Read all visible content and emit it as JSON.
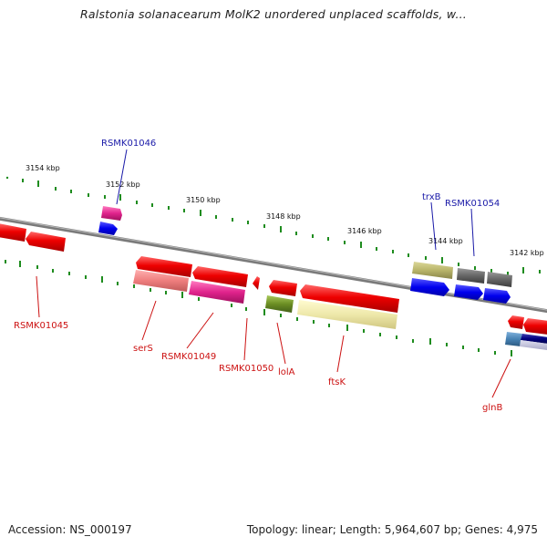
{
  "title": "Ralstonia solanacearum MolK2 unordered unplaced scaffolds, w...",
  "footer": {
    "accession": "Accession: NS_000197",
    "summary": "Topology: linear; Length: 5,964,607 bp; Genes: 4,975"
  },
  "ticks": [
    "3154 kbp",
    "3152 kbp",
    "3150 kbp",
    "3148 kbp",
    "3146 kbp",
    "3144 kbp",
    "3142 kbp"
  ],
  "gene_labels": {
    "rsmk01046": "RSMK01046",
    "trxb": "trxB",
    "rsmk01054": "RSMK01054",
    "rsmk01045": "RSMK01045",
    "sers": "serS",
    "rsmk01049": "RSMK01049",
    "rsmk01050": "RSMK01050",
    "lola": "lolA",
    "ftsk": "ftsK",
    "glnb": "glnB"
  },
  "colors": {
    "strand": "#7d7d7d",
    "tick": "#1e8c1e",
    "cds": "#e00000",
    "pink": "#e0238c",
    "salmon": "#ee7d7d",
    "olive": "#6b8e23",
    "khaki": "#eee8aa",
    "tan": "#b8b46a",
    "grey": "#666666",
    "blue": "#0000ee",
    "steel": "#4682b4",
    "navy": "#000080",
    "label_red": "#cc1111",
    "label_blue": "#1a1aa8"
  }
}
